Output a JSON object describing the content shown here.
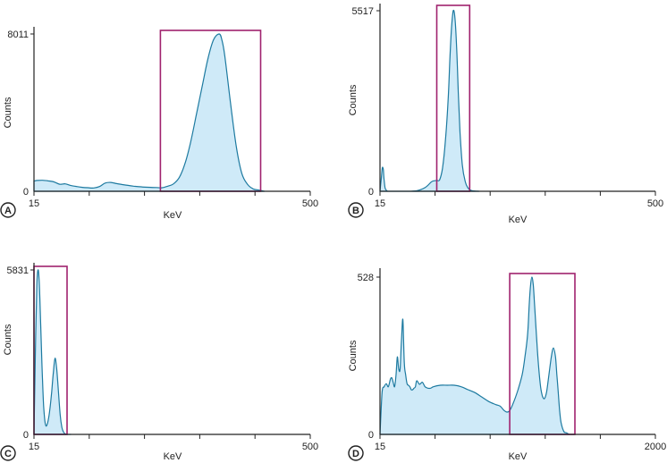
{
  "chart_data": [
    {
      "type": "area",
      "panel": "A",
      "xlabel": "KeV",
      "ylabel": "Counts",
      "x_tick_labels": [
        "15",
        "500"
      ],
      "y_tick_labels": [
        "0",
        "8011"
      ],
      "xlim": [
        15,
        500
      ],
      "ylim": [
        0,
        8011
      ],
      "x_ticks": [
        15,
        112,
        209,
        306,
        403,
        500
      ],
      "energy_window": [
        237,
        413
      ],
      "x": [
        15,
        20,
        30,
        40,
        50,
        60,
        70,
        80,
        90,
        100,
        110,
        120,
        130,
        140,
        150,
        160,
        170,
        180,
        190,
        200,
        210,
        220,
        230,
        240,
        250,
        260,
        270,
        280,
        290,
        300,
        310,
        320,
        330,
        340,
        345,
        350,
        360,
        370,
        380,
        390,
        400,
        410,
        420
      ],
      "y": [
        520,
        550,
        560,
        530,
        480,
        360,
        380,
        290,
        240,
        200,
        180,
        170,
        240,
        420,
        450,
        390,
        340,
        300,
        260,
        230,
        210,
        200,
        190,
        180,
        260,
        380,
        700,
        1400,
        2500,
        3900,
        5300,
        6700,
        7700,
        8011,
        7700,
        6900,
        4500,
        2300,
        900,
        350,
        120,
        60,
        0
      ]
    },
    {
      "type": "area",
      "panel": "B",
      "xlabel": "KeV",
      "ylabel": "Counts",
      "x_tick_labels": [
        "15",
        "500"
      ],
      "y_tick_labels": [
        "0",
        "5517"
      ],
      "xlim": [
        15,
        500
      ],
      "ylim": [
        0,
        5517
      ],
      "x_ticks": [
        15,
        112,
        209,
        306,
        403,
        500
      ],
      "energy_window": [
        115,
        173
      ],
      "x": [
        15,
        17,
        19,
        20,
        21,
        22,
        24,
        27,
        30,
        40,
        60,
        80,
        95,
        105,
        110,
        115,
        120,
        125,
        130,
        135,
        138,
        141,
        144,
        147,
        150,
        153,
        156,
        160,
        165,
        170,
        175,
        180,
        190
      ],
      "y": [
        0,
        350,
        700,
        720,
        650,
        400,
        100,
        20,
        0,
        0,
        0,
        20,
        120,
        280,
        320,
        330,
        350,
        700,
        1500,
        2800,
        4000,
        5000,
        5517,
        5300,
        4400,
        3000,
        1800,
        800,
        300,
        100,
        30,
        10,
        0
      ]
    },
    {
      "type": "area",
      "panel": "C",
      "xlabel": "KeV",
      "ylabel": "Counts",
      "x_tick_labels": [
        "15",
        "500"
      ],
      "y_tick_labels": [
        "0",
        "5831"
      ],
      "xlim": [
        15,
        500
      ],
      "ylim": [
        0,
        5831
      ],
      "x_ticks": [
        15,
        112,
        209,
        306,
        403,
        500
      ],
      "energy_window": [
        15,
        73
      ],
      "x": [
        15,
        18,
        20,
        22,
        24,
        26,
        28,
        30,
        32,
        34,
        36,
        38,
        40,
        43,
        46,
        49,
        52,
        55,
        58,
        61,
        64,
        67,
        70,
        73,
        76,
        80
      ],
      "y": [
        0,
        3500,
        5300,
        5831,
        5500,
        4400,
        3100,
        1900,
        1000,
        500,
        300,
        350,
        500,
        900,
        1500,
        2200,
        2700,
        2300,
        1500,
        700,
        250,
        80,
        20,
        5,
        0,
        0
      ]
    },
    {
      "type": "area",
      "panel": "D",
      "xlabel": "KeV",
      "ylabel": "Counts",
      "x_tick_labels": [
        "15",
        "2000"
      ],
      "y_tick_labels": [
        "0",
        "528"
      ],
      "xlim": [
        15,
        2000
      ],
      "ylim": [
        0,
        528
      ],
      "x_ticks": [
        15,
        412,
        809,
        1206,
        1603,
        2000
      ],
      "energy_window": [
        950,
        1420
      ],
      "x": [
        15,
        30,
        45,
        60,
        75,
        90,
        100,
        110,
        120,
        130,
        140,
        150,
        160,
        170,
        180,
        190,
        200,
        210,
        220,
        230,
        240,
        250,
        260,
        270,
        280,
        300,
        320,
        340,
        360,
        380,
        400,
        450,
        500,
        550,
        600,
        650,
        700,
        750,
        800,
        850,
        880,
        910,
        930,
        950,
        980,
        1010,
        1040,
        1060,
        1080,
        1090,
        1100,
        1110,
        1120,
        1130,
        1150,
        1170,
        1185,
        1200,
        1215,
        1230,
        1250,
        1265,
        1280,
        1290,
        1300,
        1310,
        1320,
        1340,
        1360,
        1380,
        1400,
        1420
      ],
      "y": [
        0,
        140,
        160,
        170,
        160,
        185,
        190,
        175,
        160,
        195,
        260,
        220,
        220,
        320,
        385,
        240,
        200,
        170,
        165,
        160,
        150,
        150,
        155,
        160,
        180,
        168,
        175,
        160,
        155,
        155,
        160,
        165,
        165,
        165,
        160,
        150,
        140,
        125,
        110,
        100,
        95,
        80,
        75,
        80,
        110,
        150,
        200,
        260,
        340,
        430,
        500,
        528,
        500,
        430,
        280,
        170,
        130,
        120,
        140,
        190,
        260,
        290,
        260,
        200,
        140,
        80,
        40,
        10,
        5,
        0,
        0,
        0
      ]
    }
  ]
}
